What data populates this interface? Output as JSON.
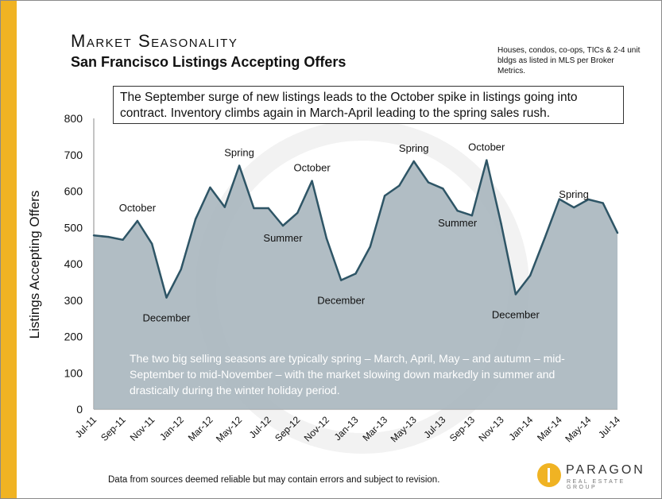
{
  "header": {
    "title": "Market Seasonality",
    "subtitle": "San Francisco Listings Accepting Offers",
    "source_note": "Houses, condos, co-ops, TICs & 2-4 unit bldgs as listed in MLS per Broker Metrics."
  },
  "notes": {
    "top": "The September surge of new listings leads to the October spike in listings going into contract. Inventory climbs again in March-April leading to the spring sales rush.",
    "body": "The two big selling seasons are typically spring – March, April, May – and autumn – mid-September to mid-November – with the market slowing down markedly in summer and drastically during the winter holiday period."
  },
  "footer": {
    "disclaimer": "Data from sources deemed reliable but may contain errors and subject to revision."
  },
  "logo": {
    "name": "PARAGON",
    "tagline": "REAL ESTATE GROUP"
  },
  "colors": {
    "accent": "#f0b323",
    "area_fill": "#a9b6be",
    "line": "#2e5566"
  },
  "chart_data": {
    "type": "area",
    "ylabel": "Listings Accepting Offers",
    "ylim": [
      0,
      800
    ],
    "yticks": [
      0,
      100,
      200,
      300,
      400,
      500,
      600,
      700,
      800
    ],
    "x": [
      "Jul-11",
      "Aug-11",
      "Sep-11",
      "Oct-11",
      "Nov-11",
      "Dec-11",
      "Jan-12",
      "Feb-12",
      "Mar-12",
      "Apr-12",
      "May-12",
      "Jun-12",
      "Jul-12",
      "Aug-12",
      "Sep-12",
      "Oct-12",
      "Nov-12",
      "Dec-12",
      "Jan-13",
      "Feb-13",
      "Mar-13",
      "Apr-13",
      "May-13",
      "Jun-13",
      "Jul-13",
      "Aug-13",
      "Sep-13",
      "Oct-13",
      "Nov-13",
      "Dec-13",
      "Jan-14",
      "Feb-14",
      "Mar-14",
      "Apr-14",
      "May-14",
      "Jun-14",
      "Jul-14"
    ],
    "xtick_labels": [
      "Jul-11",
      "Sep-11",
      "Nov-11",
      "Jan-12",
      "Mar-12",
      "May-12",
      "Jul-12",
      "Sep-12",
      "Nov-12",
      "Jan-13",
      "Mar-13",
      "May-13",
      "Jul-13",
      "Sep-13",
      "Nov-13",
      "Jan-14",
      "Mar-14",
      "May-14",
      "Jul-14"
    ],
    "values": [
      478,
      474,
      466,
      518,
      455,
      307,
      385,
      523,
      610,
      556,
      670,
      553,
      553,
      505,
      540,
      628,
      470,
      355,
      373,
      447,
      587,
      615,
      682,
      624,
      607,
      546,
      533,
      685,
      510,
      316,
      368,
      471,
      578,
      555,
      577,
      567,
      485
    ],
    "annotations": [
      {
        "text": "October",
        "index": 3,
        "value": 518
      },
      {
        "text": "December",
        "index": 5,
        "value": 307
      },
      {
        "text": "Spring",
        "index": 10,
        "value": 670
      },
      {
        "text": "Summer",
        "index": 13,
        "value": 505
      },
      {
        "text": "October",
        "index": 15,
        "value": 628
      },
      {
        "text": "December",
        "index": 17,
        "value": 355
      },
      {
        "text": "Spring",
        "index": 22,
        "value": 682
      },
      {
        "text": "Summer",
        "index": 25,
        "value": 546
      },
      {
        "text": "October",
        "index": 27,
        "value": 685
      },
      {
        "text": "December",
        "index": 29,
        "value": 316
      },
      {
        "text": "Spring",
        "index": 33,
        "value": 555
      }
    ]
  }
}
